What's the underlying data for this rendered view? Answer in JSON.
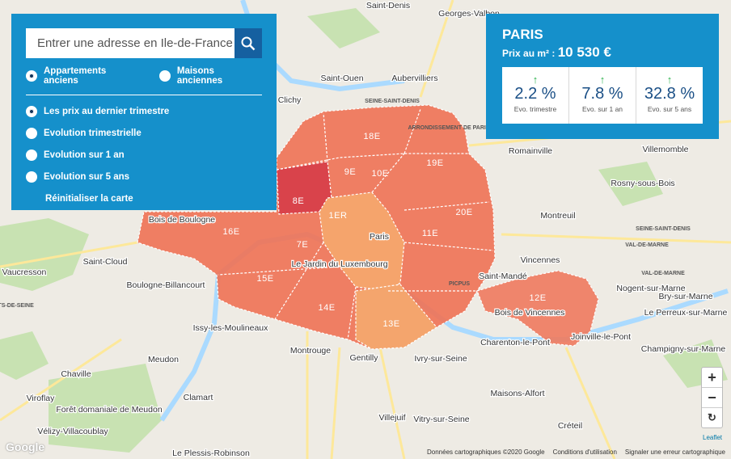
{
  "search": {
    "placeholder": "Entrer une adresse en Ile-de-France"
  },
  "property_types": [
    "Appartements anciens",
    "Maisons anciennes"
  ],
  "views": [
    "Les prix au dernier trimestre",
    "Evolution trimestrielle",
    "Evolution sur 1 an",
    "Evolution sur 5 ans"
  ],
  "reset": "Réinitialiser la carte",
  "info": {
    "city": "PARIS",
    "price_label": "Prix au m²",
    "separator": ":",
    "price": "10 530 €",
    "stats": [
      {
        "value": "2.2 %",
        "label": "Evo. trimestre"
      },
      {
        "value": "7.8 %",
        "label": "Evo. sur 1 an"
      },
      {
        "value": "32.8 %",
        "label": "Evo. sur 5 ans"
      }
    ]
  },
  "districts": [
    "18E",
    "19E",
    "9E",
    "10E",
    "8E",
    "1ER",
    "20E",
    "11E",
    "16E",
    "7E",
    "15E",
    "14E",
    "13E",
    "12E"
  ],
  "map_labels": [
    "Saint-Denis",
    "Georges-Valbon",
    "Saint-Ouen",
    "Aubervilliers",
    "Clichy",
    "SEINE-SAINT-DENIS",
    "ARRONDISSEMENT DE PARIS",
    "Romainville",
    "Villemomble",
    "Rosny-sous-Bois",
    "Montreuil",
    "SEINE-SAINT-DENIS",
    "VAL-DE-MARNE",
    "Saint-Cloud",
    "Vaucresson",
    "Boulogne-Billancourt",
    "Paris",
    "Le Jardin du Luxembourg",
    "Vincennes",
    "Saint-Mandé",
    "Nogent-sur-Marne",
    "Le Perreux-sur-Marne",
    "Bry-sur-Marne",
    "Issy-les-Moulineaux",
    "Meudon",
    "Montrouge",
    "Gentilly",
    "Ivry-sur-Seine",
    "Charenton-le-Pont",
    "Joinville-le-Pont",
    "Champigny-sur-Marne",
    "Chaville",
    "Clamart",
    "Viroflay",
    "Forêt domaniale de Meudon",
    "Vélizy-Villacoublay",
    "Villejuif",
    "Vitry-sur-Seine",
    "Maisons-Alfort",
    "Créteil",
    "Le Plessis-Robinson",
    "HAUTS-DE-SEINE",
    "VAL-DE-MARNE",
    "Bois de Boulogne",
    "Bois de Vincennes",
    "PICPUS"
  ],
  "zoom": {
    "in": "+",
    "out": "−"
  },
  "footer": {
    "google": "Google",
    "data": "Données cartographiques ©2020 Google",
    "terms": "Conditions d'utilisation",
    "report": "Signaler une erreur cartographique",
    "leaflet": "Leaflet"
  }
}
